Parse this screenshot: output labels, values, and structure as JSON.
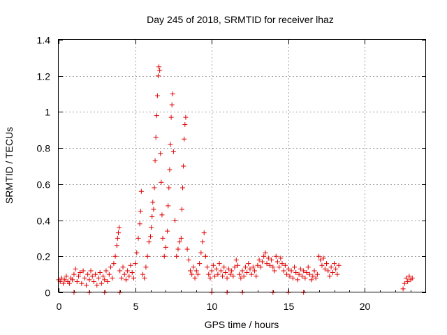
{
  "chart_data": {
    "type": "scatter",
    "title": "Day 245 of 2018, SRMTID for receiver lhaz",
    "xlabel": "GPS time / hours",
    "ylabel": "SRMTID / TECUs",
    "xlim": [
      0,
      24
    ],
    "ylim": [
      0,
      1.4
    ],
    "xticks": [
      0,
      5,
      10,
      15,
      20
    ],
    "yticks": [
      0,
      0.2,
      0.4,
      0.6,
      0.8,
      1,
      1.2,
      1.4
    ],
    "ytick_labels": [
      "0",
      "0.2",
      "0.4",
      "0.6",
      "0.8",
      "1",
      "1.2",
      "1.4"
    ],
    "grid": true,
    "marker": "plus",
    "series": [
      {
        "name": "SRMTID",
        "color": "#e00000",
        "points": [
          [
            0.0,
            0.07
          ],
          [
            0.1,
            0.06
          ],
          [
            0.2,
            0.08
          ],
          [
            0.3,
            0.05
          ],
          [
            0.4,
            0.07
          ],
          [
            0.5,
            0.09
          ],
          [
            0.6,
            0.06
          ],
          [
            0.7,
            0.05
          ],
          [
            0.8,
            0.08
          ],
          [
            0.9,
            0.07
          ],
          [
            1.0,
            0.1
          ],
          [
            1.0,
            0.0
          ],
          [
            1.1,
            0.13
          ],
          [
            1.2,
            0.06
          ],
          [
            1.3,
            0.09
          ],
          [
            1.4,
            0.11
          ],
          [
            1.5,
            0.05
          ],
          [
            1.6,
            0.12
          ],
          [
            1.7,
            0.08
          ],
          [
            1.8,
            0.04
          ],
          [
            1.9,
            0.1
          ],
          [
            2.0,
            0.07
          ],
          [
            2.0,
            0.0
          ],
          [
            2.1,
            0.12
          ],
          [
            2.2,
            0.09
          ],
          [
            2.3,
            0.06
          ],
          [
            2.4,
            0.1
          ],
          [
            2.5,
            0.04
          ],
          [
            2.6,
            0.08
          ],
          [
            2.7,
            0.11
          ],
          [
            2.8,
            0.05
          ],
          [
            2.9,
            0.09
          ],
          [
            3.0,
            0.07
          ],
          [
            3.0,
            0.0
          ],
          [
            3.1,
            0.12
          ],
          [
            3.2,
            0.06
          ],
          [
            3.3,
            0.1
          ],
          [
            3.4,
            0.14
          ],
          [
            3.5,
            0.08
          ],
          [
            3.6,
            0.16
          ],
          [
            3.7,
            0.2
          ],
          [
            3.8,
            0.26
          ],
          [
            3.85,
            0.3
          ],
          [
            3.9,
            0.33
          ],
          [
            3.95,
            0.36
          ],
          [
            4.0,
            0.12
          ],
          [
            4.0,
            0.0
          ],
          [
            4.1,
            0.08
          ],
          [
            4.2,
            0.14
          ],
          [
            4.3,
            0.1
          ],
          [
            4.4,
            0.07
          ],
          [
            4.5,
            0.12
          ],
          [
            4.6,
            0.09
          ],
          [
            4.7,
            0.15
          ],
          [
            4.8,
            0.11
          ],
          [
            4.9,
            0.08
          ],
          [
            5.0,
            0.16
          ],
          [
            5.1,
            0.22
          ],
          [
            5.2,
            0.3
          ],
          [
            5.3,
            0.38
          ],
          [
            5.35,
            0.45
          ],
          [
            5.4,
            0.56
          ],
          [
            5.5,
            0.1
          ],
          [
            5.6,
            0.08
          ],
          [
            5.7,
            0.14
          ],
          [
            5.8,
            0.2
          ],
          [
            5.9,
            0.28
          ],
          [
            6.0,
            0.31
          ],
          [
            6.05,
            0.36
          ],
          [
            6.1,
            0.42
          ],
          [
            6.15,
            0.5
          ],
          [
            6.2,
            0.46
          ],
          [
            6.25,
            0.58
          ],
          [
            6.3,
            0.73
          ],
          [
            6.35,
            0.86
          ],
          [
            6.4,
            0.98
          ],
          [
            6.45,
            1.09
          ],
          [
            6.5,
            1.2
          ],
          [
            6.55,
            1.25
          ],
          [
            6.6,
            1.23
          ],
          [
            6.65,
            0.77
          ],
          [
            6.7,
            0.61
          ],
          [
            6.75,
            0.43
          ],
          [
            6.8,
            0.3
          ],
          [
            6.9,
            0.2
          ],
          [
            7.0,
            0.25
          ],
          [
            7.1,
            0.34
          ],
          [
            7.15,
            0.48
          ],
          [
            7.2,
            0.58
          ],
          [
            7.25,
            0.68
          ],
          [
            7.3,
            0.82
          ],
          [
            7.35,
            0.97
          ],
          [
            7.4,
            1.04
          ],
          [
            7.45,
            1.1
          ],
          [
            7.5,
            0.78
          ],
          [
            7.6,
            0.4
          ],
          [
            7.7,
            0.2
          ],
          [
            7.8,
            0.24
          ],
          [
            7.9,
            0.28
          ],
          [
            8.0,
            0.3
          ],
          [
            8.05,
            0.46
          ],
          [
            8.1,
            0.58
          ],
          [
            8.15,
            0.7
          ],
          [
            8.2,
            0.85
          ],
          [
            8.25,
            0.93
          ],
          [
            8.3,
            0.97
          ],
          [
            8.4,
            0.24
          ],
          [
            8.5,
            0.18
          ],
          [
            8.6,
            0.12
          ],
          [
            8.7,
            0.1
          ],
          [
            8.8,
            0.14
          ],
          [
            8.9,
            0.08
          ],
          [
            9.0,
            0.12
          ],
          [
            9.1,
            0.1
          ],
          [
            9.2,
            0.16
          ],
          [
            9.3,
            0.22
          ],
          [
            9.4,
            0.28
          ],
          [
            9.5,
            0.33
          ],
          [
            9.6,
            0.2
          ],
          [
            9.7,
            0.14
          ],
          [
            9.8,
            0.1
          ],
          [
            9.9,
            0.08
          ],
          [
            10.0,
            0.12
          ],
          [
            10.1,
            0.15
          ],
          [
            10.2,
            0.09
          ],
          [
            10.3,
            0.13
          ],
          [
            10.4,
            0.1
          ],
          [
            10.5,
            0.16
          ],
          [
            10.6,
            0.12
          ],
          [
            10.7,
            0.09
          ],
          [
            10.8,
            0.14
          ],
          [
            10.9,
            0.11
          ],
          [
            11.0,
            0.08
          ],
          [
            11.1,
            0.13
          ],
          [
            11.2,
            0.1
          ],
          [
            11.3,
            0.12
          ],
          [
            11.4,
            0.09
          ],
          [
            11.5,
            0.14
          ],
          [
            11.6,
            0.18
          ],
          [
            11.7,
            0.15
          ],
          [
            11.8,
            0.1
          ],
          [
            11.9,
            0.08
          ],
          [
            12.0,
            0.12
          ],
          [
            12.1,
            0.09
          ],
          [
            12.2,
            0.14
          ],
          [
            12.3,
            0.11
          ],
          [
            12.4,
            0.16
          ],
          [
            12.5,
            0.13
          ],
          [
            12.6,
            0.1
          ],
          [
            12.7,
            0.14
          ],
          [
            12.8,
            0.12
          ],
          [
            12.9,
            0.09
          ],
          [
            13.0,
            0.15
          ],
          [
            13.1,
            0.18
          ],
          [
            13.2,
            0.14
          ],
          [
            13.3,
            0.17
          ],
          [
            13.4,
            0.2
          ],
          [
            13.5,
            0.22
          ],
          [
            13.6,
            0.16
          ],
          [
            13.7,
            0.19
          ],
          [
            13.8,
            0.15
          ],
          [
            13.9,
            0.18
          ],
          [
            14.0,
            0.14
          ],
          [
            14.1,
            0.12
          ],
          [
            14.2,
            0.2
          ],
          [
            14.3,
            0.17
          ],
          [
            14.4,
            0.14
          ],
          [
            14.5,
            0.19
          ],
          [
            14.6,
            0.16
          ],
          [
            14.7,
            0.12
          ],
          [
            14.8,
            0.15
          ],
          [
            14.9,
            0.1
          ],
          [
            15.0,
            0.13
          ],
          [
            15.1,
            0.09
          ],
          [
            15.2,
            0.12
          ],
          [
            15.3,
            0.08
          ],
          [
            15.4,
            0.14
          ],
          [
            15.5,
            0.11
          ],
          [
            15.6,
            0.07
          ],
          [
            15.7,
            0.1
          ],
          [
            15.8,
            0.13
          ],
          [
            15.9,
            0.09
          ],
          [
            16.0,
            0.12
          ],
          [
            16.1,
            0.08
          ],
          [
            16.2,
            0.11
          ],
          [
            16.3,
            0.14
          ],
          [
            16.4,
            0.1
          ],
          [
            16.5,
            0.07
          ],
          [
            16.6,
            0.09
          ],
          [
            16.7,
            0.12
          ],
          [
            16.8,
            0.08
          ],
          [
            16.9,
            0.1
          ],
          [
            17.0,
            0.2
          ],
          [
            17.1,
            0.18
          ],
          [
            17.2,
            0.15
          ],
          [
            17.3,
            0.19
          ],
          [
            17.4,
            0.13
          ],
          [
            17.5,
            0.16
          ],
          [
            17.6,
            0.12
          ],
          [
            17.7,
            0.09
          ],
          [
            17.8,
            0.14
          ],
          [
            17.9,
            0.11
          ],
          [
            18.0,
            0.16
          ],
          [
            18.1,
            0.13
          ],
          [
            18.2,
            0.1
          ],
          [
            18.3,
            0.15
          ],
          [
            15.0,
            0.0
          ],
          [
            16.0,
            0.0
          ],
          [
            12.0,
            0.0
          ],
          [
            11.0,
            0.0
          ],
          [
            10.0,
            0.0
          ],
          [
            14.0,
            0.0
          ],
          [
            22.5,
            0.02
          ],
          [
            22.6,
            0.05
          ],
          [
            22.7,
            0.08
          ],
          [
            22.8,
            0.06
          ],
          [
            22.9,
            0.09
          ],
          [
            23.0,
            0.07
          ],
          [
            23.1,
            0.08
          ]
        ]
      }
    ]
  }
}
